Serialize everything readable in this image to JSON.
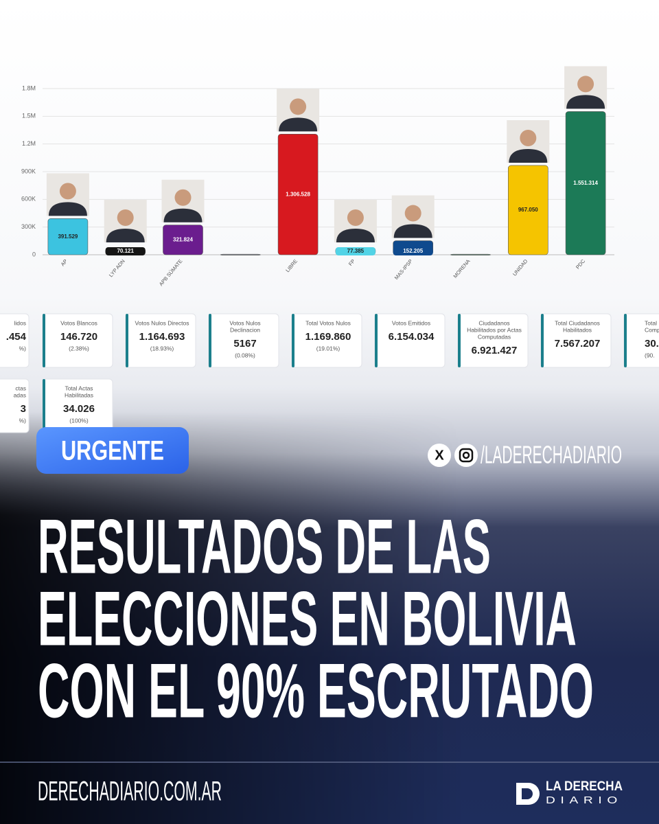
{
  "chart_data": {
    "type": "bar",
    "categories": [
      "AP",
      "LYP ADN",
      "APB SÚMATE",
      null,
      "LIBRE",
      "FP",
      "MAS-IPSP",
      "MORENA",
      "UNIDAD",
      "PDC"
    ],
    "values": [
      391529,
      70121,
      321824,
      6000,
      1306528,
      77385,
      152205,
      6000,
      967050,
      1551314
    ],
    "value_labels": [
      "391.529",
      "70.121",
      "321.824",
      null,
      "1.306.528",
      "77.385",
      "152.205",
      null,
      "967.050",
      "1.551.314"
    ],
    "colors": [
      "#3cc3e0",
      "#151515",
      "#6b1d8e",
      "#9aa0a6",
      "#d7191f",
      "#52d3e6",
      "#0f4a8e",
      "#7c9c8c",
      "#f5c400",
      "#1c7a57"
    ],
    "ylim": [
      0,
      1800000
    ],
    "yticks": [
      0,
      {
        "value": 300000,
        "label": "300K"
      },
      {
        "value": 600000,
        "label": "600K"
      },
      {
        "value": 900000,
        "label": "900K"
      },
      {
        "value": 1200000,
        "label": "1.2M"
      },
      {
        "value": 1500000,
        "label": "1.5M"
      },
      {
        "value": 1800000,
        "label": "1.8M"
      }
    ],
    "grid": true
  },
  "stats": [
    {
      "title": [
        "lidos"
      ],
      "value": ".454",
      "percent": "%)"
    },
    {
      "title": [
        "Votos Blancos"
      ],
      "value": "146.720",
      "percent": "(2.38%)"
    },
    {
      "title": [
        "Votos Nulos Directos"
      ],
      "value": "1.164.693",
      "percent": "(18.93%)"
    },
    {
      "title": [
        "Votos Nulos",
        "Declinacion"
      ],
      "value": "5167",
      "percent": "(0.08%)"
    },
    {
      "title": [
        "Total Votos Nulos"
      ],
      "value": "1.169.860",
      "percent": "(19.01%)"
    },
    {
      "title": [
        "Votos Emitidos"
      ],
      "value": "6.154.034"
    },
    {
      "title": [
        "Ciudadanos",
        "Habilitados por Actas",
        "Computadas"
      ],
      "value": "6.921.427"
    },
    {
      "title": [
        "Total Ciudadanos",
        "Habilitados"
      ],
      "value": "7.567.207"
    },
    {
      "title": [
        "Total",
        "Comp"
      ],
      "value": "30.",
      "percent": "(90."
    },
    {
      "title": [
        "ctas",
        "adas"
      ],
      "value": "3",
      "percent": "%)"
    },
    {
      "title": [
        "Total Actas",
        "Habilitadas"
      ],
      "value": "34.026",
      "percent": "(100%)"
    }
  ],
  "badge": "URGENTE",
  "handle": "/LADERECHADIARIO",
  "headline": [
    "RESULTADOS DE LAS",
    "ELECCIONES EN BOLIVIA",
    "CON EL 90% ESCRUTADO"
  ],
  "website": "DERECHADIARIO.COM.AR",
  "logo": [
    "LA DERECHA",
    "DIARIO"
  ]
}
